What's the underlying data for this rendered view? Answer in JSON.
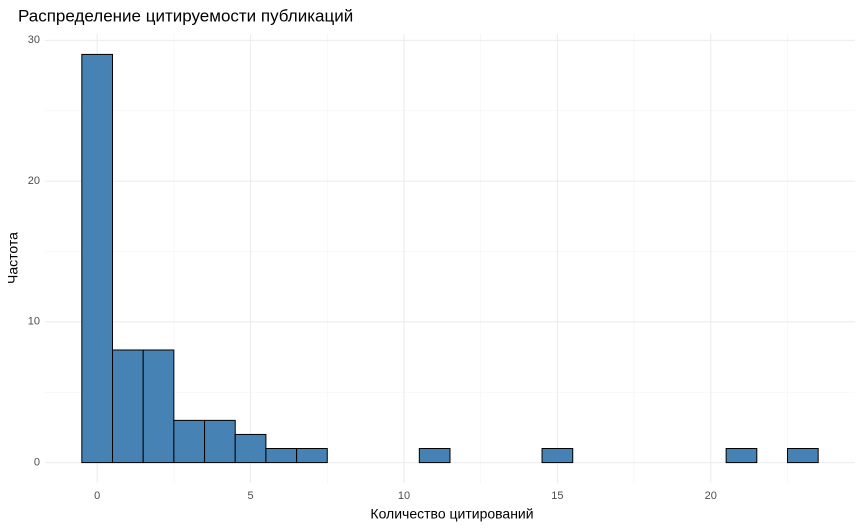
{
  "chart_data": {
    "type": "histogram",
    "title": "Распределение цитируемости публикаций",
    "x_label": "Количество цитирований",
    "y_label": "Частота",
    "bins": [
      -0.5,
      0.5,
      1.5,
      2.5,
      3.5,
      4.5,
      5.5,
      6.5,
      7.5,
      8.5,
      9.5,
      10.5,
      11.5,
      12.5,
      13.5,
      14.5,
      15.5,
      16.5,
      17.5,
      18.5,
      19.5,
      20.5,
      21.5,
      22.5,
      23.5
    ],
    "values": [
      29,
      8,
      8,
      3,
      3,
      2,
      1,
      1,
      0,
      0,
      0,
      1,
      0,
      0,
      0,
      1,
      0,
      0,
      0,
      0,
      0,
      1,
      0,
      1
    ],
    "color": "#4682b4",
    "edge_color": "#000000",
    "xlim": [
      -1.7,
      24.7
    ],
    "xticks": [
      0,
      5,
      10,
      15,
      20
    ],
    "xminor": [
      2.5,
      7.5,
      12.5,
      17.5,
      22.5
    ],
    "ylim": [
      -1.45,
      30.45
    ],
    "yticks": [
      0,
      10,
      20,
      30
    ],
    "yminor": [
      5,
      15,
      25
    ],
    "grid": true
  }
}
